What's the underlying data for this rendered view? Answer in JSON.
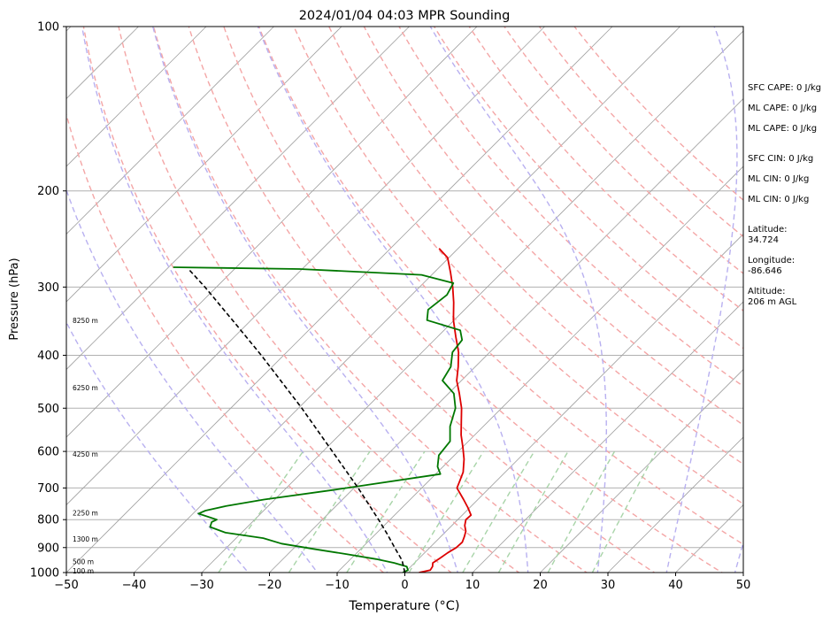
{
  "chart_data": {
    "type": "line",
    "subtype": "skew-t log-p",
    "title": "2024/01/04 04:03 MPR Sounding",
    "xlabel": "Temperature (°C)",
    "ylabel": "Pressure (hPa)",
    "xlim": [
      -50,
      50
    ],
    "ylim": [
      1000,
      100
    ],
    "y_scale": "log",
    "grid": true,
    "x_ticks": [
      -50,
      -40,
      -30,
      -20,
      -10,
      0,
      10,
      20,
      30,
      40,
      50
    ],
    "y_ticks": [
      1000,
      900,
      800,
      700,
      600,
      500,
      400,
      300,
      200,
      100
    ],
    "altitude_markers": [
      {
        "label": "100 m",
        "p": 993
      },
      {
        "label": "500 m",
        "p": 955
      },
      {
        "label": "1300 m",
        "p": 867
      },
      {
        "label": "2250 m",
        "p": 778
      },
      {
        "label": "4250 m",
        "p": 606
      },
      {
        "label": "6250 m",
        "p": 458
      },
      {
        "label": "8250 m",
        "p": 345
      }
    ],
    "series": [
      {
        "role": "temperature",
        "color": "#dd0000",
        "points": [
          [
            1000,
            2.1
          ],
          [
            990,
            3.4
          ],
          [
            975,
            3.2
          ],
          [
            960,
            2.7
          ],
          [
            940,
            3.1
          ],
          [
            920,
            3.4
          ],
          [
            900,
            3.9
          ],
          [
            880,
            4.0
          ],
          [
            860,
            3.5
          ],
          [
            840,
            2.9
          ],
          [
            820,
            1.9
          ],
          [
            800,
            1.2
          ],
          [
            785,
            1.3
          ],
          [
            760,
            -0.3
          ],
          [
            735,
            -2.1
          ],
          [
            700,
            -4.8
          ],
          [
            680,
            -5.4
          ],
          [
            655,
            -6.2
          ],
          [
            620,
            -8.0
          ],
          [
            590,
            -9.9
          ],
          [
            560,
            -12.0
          ],
          [
            530,
            -13.9
          ],
          [
            500,
            -15.9
          ],
          [
            470,
            -18.4
          ],
          [
            445,
            -20.7
          ],
          [
            420,
            -22.5
          ],
          [
            395,
            -24.6
          ],
          [
            370,
            -27.3
          ],
          [
            345,
            -30.1
          ],
          [
            320,
            -32.7
          ],
          [
            300,
            -35.1
          ],
          [
            282,
            -37.6
          ],
          [
            265,
            -40.2
          ],
          [
            255,
            -42.8
          ]
        ]
      },
      {
        "role": "dewpoint",
        "color": "#007700",
        "points": [
          [
            1000,
            -0.3
          ],
          [
            990,
            0.1
          ],
          [
            975,
            -0.6
          ],
          [
            960,
            -3.0
          ],
          [
            945,
            -6.2
          ],
          [
            925,
            -11.4
          ],
          [
            905,
            -17.0
          ],
          [
            885,
            -22.5
          ],
          [
            865,
            -26.0
          ],
          [
            845,
            -32.4
          ],
          [
            825,
            -35.5
          ],
          [
            808,
            -36.0
          ],
          [
            800,
            -35.6
          ],
          [
            780,
            -39.2
          ],
          [
            770,
            -38.6
          ],
          [
            755,
            -36.2
          ],
          [
            735,
            -31.6
          ],
          [
            705,
            -22.5
          ],
          [
            660,
            -9.3
          ],
          [
            640,
            -10.8
          ],
          [
            610,
            -12.3
          ],
          [
            575,
            -12.7
          ],
          [
            540,
            -14.9
          ],
          [
            500,
            -16.8
          ],
          [
            470,
            -19.2
          ],
          [
            445,
            -22.8
          ],
          [
            420,
            -23.6
          ],
          [
            395,
            -25.5
          ],
          [
            375,
            -25.9
          ],
          [
            360,
            -27.6
          ],
          [
            345,
            -34.0
          ],
          [
            330,
            -35.4
          ],
          [
            320,
            -35.1
          ],
          [
            310,
            -34.8
          ],
          [
            295,
            -35.6
          ],
          [
            285,
            -41.5
          ],
          [
            278,
            -60.4
          ],
          [
            276,
            -79.3
          ]
        ]
      },
      {
        "role": "parcel",
        "color": "#000000",
        "style": "dashed",
        "points": [
          [
            1000,
            0.0
          ],
          [
            950,
            -2.2
          ],
          [
            900,
            -5.2
          ],
          [
            850,
            -8.3
          ],
          [
            800,
            -11.7
          ],
          [
            700,
            -19.4
          ],
          [
            600,
            -28.6
          ],
          [
            500,
            -39.5
          ],
          [
            400,
            -53.3
          ],
          [
            350,
            -61.8
          ],
          [
            300,
            -71.7
          ],
          [
            278,
            -76.8
          ]
        ]
      }
    ],
    "background_lines": {
      "isotherms_c": [
        -140,
        -130,
        -120,
        -110,
        -100,
        -90,
        -80,
        -70,
        -60,
        -50,
        -40,
        -30,
        -20,
        -10,
        0,
        10,
        20,
        30,
        40,
        50
      ],
      "dry_adiabats_theta_k": [
        270,
        280,
        290,
        300,
        310,
        320,
        330,
        340,
        350,
        360,
        370,
        380,
        390,
        400,
        410,
        420
      ],
      "moist_adiabats_start_c": [
        -20,
        -10,
        0,
        10,
        20,
        30,
        40,
        50
      ],
      "mixing_ratio_gkg": [
        0.4,
        1,
        2,
        4,
        7,
        10,
        16,
        24
      ]
    },
    "annotations": [
      "SFC CAPE: 0 J/kg",
      "ML CAPE: 0 J/kg",
      "ML CAPE: 0 J/kg",
      "SFC CIN: 0 J/kg",
      "ML CIN: 0 J/kg",
      "ML CIN: 0 J/kg",
      "Latitude:",
      "34.724",
      "Longitude:",
      "-86.646",
      "Altitude:",
      "206 m AGL"
    ]
  }
}
